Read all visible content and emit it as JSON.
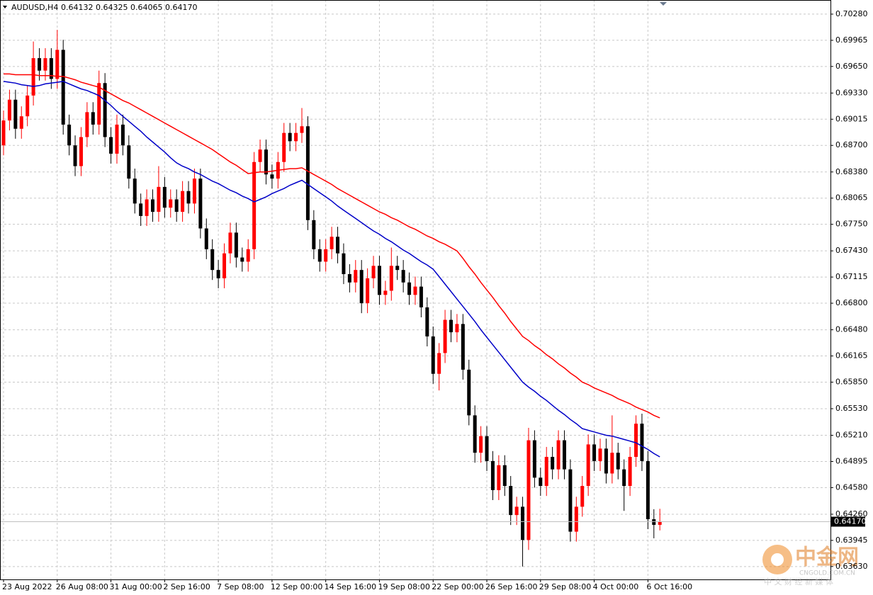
{
  "chart_data": {
    "type": "candlestick",
    "title": "AUDUSD,H4",
    "subtitle": "0.64132 0.64325 0.64065 0.64170",
    "up_color": "#ff0000",
    "down_color": "#000000",
    "grid": true,
    "ylim": [
      0.63475,
      0.7045
    ],
    "yticks": [
      {
        "value": 0.7028,
        "label": "0.70280"
      },
      {
        "value": 0.69965,
        "label": "0.69965"
      },
      {
        "value": 0.6965,
        "label": "0.69650"
      },
      {
        "value": 0.6933,
        "label": "0.69330"
      },
      {
        "value": 0.69015,
        "label": "0.69015"
      },
      {
        "value": 0.687,
        "label": "0.68700"
      },
      {
        "value": 0.6838,
        "label": "0.68380"
      },
      {
        "value": 0.68065,
        "label": "0.68065"
      },
      {
        "value": 0.6775,
        "label": "0.67750"
      },
      {
        "value": 0.6743,
        "label": "0.67430"
      },
      {
        "value": 0.67115,
        "label": "0.67115"
      },
      {
        "value": 0.668,
        "label": "0.66800"
      },
      {
        "value": 0.6648,
        "label": "0.66480"
      },
      {
        "value": 0.66165,
        "label": "0.66165"
      },
      {
        "value": 0.6585,
        "label": "0.65850"
      },
      {
        "value": 0.6553,
        "label": "0.65530"
      },
      {
        "value": 0.6521,
        "label": "0.65210"
      },
      {
        "value": 0.64895,
        "label": "0.64895"
      },
      {
        "value": 0.6458,
        "label": "0.64580"
      },
      {
        "value": 0.6426,
        "label": "0.64260"
      },
      {
        "value": 0.63945,
        "label": "0.63945"
      },
      {
        "value": 0.6363,
        "label": "0.63630"
      }
    ],
    "current_price": {
      "value": 0.6417,
      "label": "0.64170"
    },
    "categories": [
      "23 Aug 2022",
      null,
      null,
      null,
      null,
      null,
      null,
      null,
      null,
      "26 Aug 08:00",
      null,
      null,
      null,
      null,
      null,
      null,
      null,
      null,
      "31 Aug 00:00",
      null,
      null,
      null,
      null,
      null,
      null,
      null,
      null,
      "2 Sep 16:00",
      null,
      null,
      null,
      null,
      null,
      null,
      null,
      null,
      "7 Sep 08:00",
      null,
      null,
      null,
      null,
      null,
      null,
      null,
      null,
      "12 Sep 00:00",
      null,
      null,
      null,
      null,
      null,
      null,
      null,
      null,
      "14 Sep 16:00",
      null,
      null,
      null,
      null,
      null,
      null,
      null,
      null,
      "19 Sep 08:00",
      null,
      null,
      null,
      null,
      null,
      null,
      null,
      null,
      "22 Sep 00:00",
      null,
      null,
      null,
      null,
      null,
      null,
      null,
      null,
      "26 Sep 16:00",
      null,
      null,
      null,
      null,
      null,
      null,
      null,
      null,
      "29 Sep 08:00",
      null,
      null,
      null,
      null,
      null,
      null,
      null,
      null,
      "4 Oct 00:00",
      null,
      null,
      null,
      null,
      null,
      null,
      null,
      null,
      "6 Oct 16:00",
      null,
      null
    ],
    "open": [
      0.687,
      0.69,
      0.6925,
      0.689,
      0.6905,
      0.693,
      0.6975,
      0.696,
      0.6975,
      0.695,
      0.6985,
      0.6895,
      0.687,
      0.6845,
      0.688,
      0.691,
      0.6895,
      0.6945,
      0.688,
      0.686,
      0.6895,
      0.687,
      0.683,
      0.68,
      0.6785,
      0.6805,
      0.679,
      0.682,
      0.6795,
      0.6805,
      0.679,
      0.6815,
      0.68,
      0.683,
      0.677,
      0.6745,
      0.672,
      0.671,
      0.674,
      0.6765,
      0.6735,
      0.673,
      0.6745,
      0.685,
      0.6865,
      0.6835,
      0.683,
      0.685,
      0.6885,
      0.6875,
      0.6885,
      0.6893,
      0.678,
      0.6745,
      0.673,
      0.6745,
      0.676,
      0.674,
      0.6715,
      0.6705,
      0.672,
      0.668,
      0.671,
      0.6725,
      0.669,
      0.6695,
      0.6725,
      0.672,
      0.6705,
      0.669,
      0.67,
      0.6675,
      0.664,
      0.6595,
      0.662,
      0.666,
      0.6645,
      0.6655,
      0.66,
      0.6545,
      0.65,
      0.652,
      0.649,
      0.6455,
      0.6485,
      0.646,
      0.6425,
      0.6435,
      0.6395,
      0.6515,
      0.647,
      0.646,
      0.6495,
      0.648,
      0.6515,
      0.648,
      0.6405,
      0.6435,
      0.646,
      0.651,
      0.649,
      0.6505,
      0.6475,
      0.65,
      0.648,
      0.646,
      0.6495,
      0.6535,
      0.649,
      0.642,
      0.64132
    ],
    "high": [
      0.6912,
      0.6937,
      0.6937,
      0.6917,
      0.6942,
      0.6995,
      0.6987,
      0.6987,
      0.6987,
      0.7009,
      0.6997,
      0.6907,
      0.6882,
      0.6892,
      0.6922,
      0.6922,
      0.696,
      0.6957,
      0.6892,
      0.6907,
      0.6907,
      0.6882,
      0.6842,
      0.6812,
      0.6817,
      0.6817,
      0.6845,
      0.6832,
      0.6817,
      0.6817,
      0.6827,
      0.6827,
      0.6842,
      0.6842,
      0.6782,
      0.6757,
      0.6732,
      0.6752,
      0.6777,
      0.6777,
      0.6747,
      0.6757,
      0.6862,
      0.6877,
      0.6877,
      0.6847,
      0.6862,
      0.6897,
      0.6897,
      0.6897,
      0.6915,
      0.6905,
      0.6792,
      0.6757,
      0.6757,
      0.6772,
      0.6772,
      0.6752,
      0.6727,
      0.6732,
      0.6732,
      0.6722,
      0.6737,
      0.6737,
      0.6707,
      0.6747,
      0.6737,
      0.6732,
      0.6717,
      0.6712,
      0.6712,
      0.6687,
      0.6652,
      0.6632,
      0.6672,
      0.6672,
      0.6667,
      0.6667,
      0.6612,
      0.6557,
      0.6532,
      0.6532,
      0.6502,
      0.6497,
      0.6497,
      0.6472,
      0.6447,
      0.6447,
      0.653,
      0.6527,
      0.6482,
      0.6507,
      0.6507,
      0.6527,
      0.6527,
      0.6492,
      0.6447,
      0.6472,
      0.6522,
      0.6522,
      0.6517,
      0.6517,
      0.6545,
      0.6512,
      0.6492,
      0.6507,
      0.6545,
      0.6547,
      0.6502,
      0.6432,
      0.64325
    ],
    "low": [
      0.6858,
      0.6888,
      0.6878,
      0.6878,
      0.6893,
      0.6918,
      0.6948,
      0.6948,
      0.6938,
      0.6938,
      0.6883,
      0.6858,
      0.6833,
      0.6833,
      0.6868,
      0.6883,
      0.6883,
      0.6868,
      0.6848,
      0.6848,
      0.6858,
      0.6818,
      0.6788,
      0.6773,
      0.6773,
      0.6778,
      0.6778,
      0.6783,
      0.6783,
      0.6778,
      0.6778,
      0.6788,
      0.6788,
      0.6758,
      0.6733,
      0.6708,
      0.6698,
      0.6698,
      0.6728,
      0.6723,
      0.6718,
      0.6718,
      0.6733,
      0.6838,
      0.6823,
      0.6818,
      0.6818,
      0.6838,
      0.6863,
      0.6863,
      0.6873,
      0.6768,
      0.6733,
      0.6718,
      0.6718,
      0.6733,
      0.6728,
      0.6703,
      0.6693,
      0.6693,
      0.6668,
      0.6668,
      0.6698,
      0.6678,
      0.6678,
      0.6683,
      0.6708,
      0.6693,
      0.6678,
      0.6678,
      0.6663,
      0.6628,
      0.6583,
      0.6575,
      0.6608,
      0.6633,
      0.6633,
      0.6588,
      0.6533,
      0.6488,
      0.6488,
      0.6478,
      0.6443,
      0.6443,
      0.6448,
      0.6413,
      0.6413,
      0.6363,
      0.6383,
      0.6458,
      0.6448,
      0.6448,
      0.6468,
      0.6468,
      0.6468,
      0.6393,
      0.6393,
      0.6423,
      0.6448,
      0.6478,
      0.6478,
      0.6463,
      0.6463,
      0.6468,
      0.643,
      0.6448,
      0.6483,
      0.6478,
      0.6408,
      0.6397,
      0.64065
    ],
    "close": [
      0.69,
      0.6925,
      0.689,
      0.6905,
      0.693,
      0.6975,
      0.696,
      0.6975,
      0.695,
      0.6985,
      0.6895,
      0.687,
      0.6845,
      0.688,
      0.691,
      0.6895,
      0.6945,
      0.688,
      0.686,
      0.6895,
      0.687,
      0.683,
      0.68,
      0.6785,
      0.6805,
      0.679,
      0.682,
      0.6795,
      0.6805,
      0.679,
      0.6815,
      0.68,
      0.683,
      0.677,
      0.6745,
      0.672,
      0.671,
      0.674,
      0.6765,
      0.6735,
      0.673,
      0.6745,
      0.685,
      0.6865,
      0.6835,
      0.683,
      0.685,
      0.6885,
      0.6875,
      0.6885,
      0.6893,
      0.678,
      0.6745,
      0.673,
      0.6745,
      0.676,
      0.674,
      0.6715,
      0.6705,
      0.672,
      0.668,
      0.671,
      0.6725,
      0.669,
      0.6695,
      0.6725,
      0.672,
      0.6705,
      0.669,
      0.67,
      0.6675,
      0.664,
      0.6595,
      0.662,
      0.666,
      0.6645,
      0.6655,
      0.66,
      0.6545,
      0.65,
      0.652,
      0.649,
      0.6455,
      0.6485,
      0.646,
      0.6425,
      0.6435,
      0.6395,
      0.6515,
      0.647,
      0.646,
      0.6495,
      0.648,
      0.6515,
      0.648,
      0.6405,
      0.6435,
      0.646,
      0.651,
      0.649,
      0.6505,
      0.6475,
      0.65,
      0.648,
      0.646,
      0.6495,
      0.6535,
      0.649,
      0.642,
      0.64132,
      0.6417
    ],
    "series": [
      {
        "color": "#ff0000",
        "values": [
          0.6956,
          0.6956,
          0.6955,
          0.6955,
          0.6955,
          0.6955,
          0.6954,
          0.6954,
          0.6954,
          0.6953,
          0.6953,
          0.6951,
          0.6949,
          0.6946,
          0.6944,
          0.6942,
          0.694,
          0.6936,
          0.6932,
          0.6928,
          0.6924,
          0.6921,
          0.6917,
          0.6913,
          0.6909,
          0.6905,
          0.6901,
          0.6897,
          0.6893,
          0.6889,
          0.6885,
          0.6881,
          0.6877,
          0.6873,
          0.6869,
          0.6865,
          0.686,
          0.6855,
          0.685,
          0.6846,
          0.6841,
          0.6836,
          0.6837,
          0.6838,
          0.6838,
          0.6839,
          0.684,
          0.6841,
          0.6842,
          0.6842,
          0.6843,
          0.6839,
          0.6835,
          0.6831,
          0.6827,
          0.6823,
          0.6818,
          0.6814,
          0.681,
          0.6806,
          0.6802,
          0.6798,
          0.6794,
          0.679,
          0.6787,
          0.6783,
          0.678,
          0.6776,
          0.6772,
          0.6769,
          0.6765,
          0.6761,
          0.6758,
          0.6754,
          0.6751,
          0.6747,
          0.6743,
          0.6734,
          0.6724,
          0.6715,
          0.6705,
          0.6696,
          0.6687,
          0.6677,
          0.6668,
          0.6658,
          0.6649,
          0.664,
          0.6635,
          0.6629,
          0.6624,
          0.6618,
          0.6613,
          0.6607,
          0.6602,
          0.6596,
          0.6591,
          0.6585,
          0.6582,
          0.6578,
          0.6575,
          0.6572,
          0.6569,
          0.6565,
          0.6562,
          0.6559,
          0.6555,
          0.6552,
          0.6549,
          0.6545,
          0.6542
        ]
      },
      {
        "color": "#0000c8",
        "values": [
          0.6947,
          0.6946,
          0.6945,
          0.6943,
          0.6942,
          0.6941,
          0.6942,
          0.6944,
          0.6945,
          0.6946,
          0.6947,
          0.6944,
          0.6941,
          0.6938,
          0.6936,
          0.6933,
          0.693,
          0.6924,
          0.6918,
          0.6911,
          0.6905,
          0.6899,
          0.6893,
          0.6887,
          0.688,
          0.6874,
          0.6868,
          0.6862,
          0.6855,
          0.6849,
          0.6845,
          0.6842,
          0.6838,
          0.6835,
          0.6831,
          0.6827,
          0.6824,
          0.682,
          0.6816,
          0.6813,
          0.6809,
          0.6806,
          0.6802,
          0.6805,
          0.6808,
          0.6812,
          0.6815,
          0.6818,
          0.6822,
          0.6825,
          0.6828,
          0.6823,
          0.6818,
          0.6813,
          0.6808,
          0.6803,
          0.6797,
          0.6792,
          0.6787,
          0.6782,
          0.6777,
          0.6772,
          0.6767,
          0.6763,
          0.6758,
          0.6754,
          0.6749,
          0.6744,
          0.674,
          0.6735,
          0.673,
          0.6726,
          0.6721,
          0.6712,
          0.6703,
          0.6694,
          0.6685,
          0.6676,
          0.6667,
          0.6658,
          0.6648,
          0.6639,
          0.663,
          0.6621,
          0.6612,
          0.6603,
          0.6594,
          0.6585,
          0.6579,
          0.6574,
          0.6568,
          0.6563,
          0.6557,
          0.6551,
          0.6546,
          0.654,
          0.6535,
          0.6529,
          0.6527,
          0.6525,
          0.6523,
          0.6521,
          0.652,
          0.6518,
          0.6516,
          0.6514,
          0.6512,
          0.6508,
          0.6504,
          0.6499,
          0.6495
        ]
      }
    ],
    "watermark": {
      "logo": "中金网",
      "domain": "CNGOLD.COM.CN",
      "slogan": "中 文 财 经 新 媒 体"
    }
  }
}
